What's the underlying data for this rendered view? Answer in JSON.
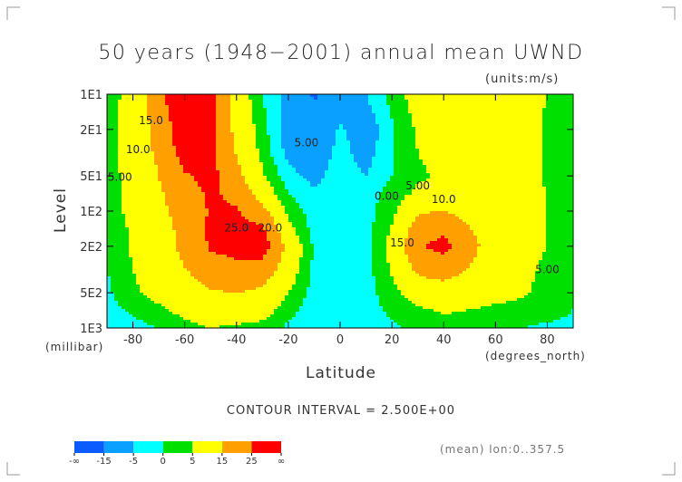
{
  "chart_data": {
    "type": "heatmap",
    "title": "50 years (1948−2001) annual mean UWND",
    "units_label": "(units:m/s)",
    "xlabel": "Latitude",
    "xunit_label": "(degrees_north)",
    "ylabel": "Level",
    "yunit_label": "(millibar)",
    "xlim": [
      -90,
      90
    ],
    "ylim": [
      1000,
      10
    ],
    "yscale": "log",
    "x_ticks": [
      -80,
      -60,
      -40,
      -20,
      0,
      20,
      40,
      60,
      80
    ],
    "x_tick_labels": [
      "-80",
      "-60",
      "-40",
      "-20",
      "0",
      "20",
      "40",
      "60",
      "80"
    ],
    "y_ticks": [
      10,
      20,
      50,
      100,
      200,
      500,
      1000
    ],
    "y_tick_labels": [
      "1E1",
      "2E1",
      "5E1",
      "1E2",
      "2E2",
      "5E2",
      "1E3"
    ],
    "contour_interval_label": "CONTOUR INTERVAL = 2.500E+00",
    "footer_label": "(mean) lon:0..357.5",
    "lat": [
      -90,
      -80,
      -70,
      -60,
      -50,
      -40,
      -30,
      -20,
      -10,
      0,
      10,
      20,
      30,
      40,
      50,
      60,
      70,
      80,
      90
    ],
    "levels": [
      10,
      20,
      30,
      50,
      70,
      100,
      150,
      200,
      300,
      500,
      700,
      1000
    ],
    "values": [
      [
        2,
        8,
        22,
        35,
        28,
        10,
        0,
        -7,
        -16,
        -10,
        -5,
        2,
        8,
        10,
        11,
        12,
        8,
        5,
        2
      ],
      [
        2,
        9,
        18,
        32,
        28,
        12,
        2,
        -8,
        -12,
        -4,
        -9,
        -1,
        6,
        9,
        10,
        10,
        8,
        4,
        1
      ],
      [
        2,
        9,
        17,
        30,
        28,
        14,
        3,
        -7,
        -10,
        -3,
        -8,
        0,
        5,
        8,
        9,
        9,
        8,
        4,
        1
      ],
      [
        2,
        8,
        15,
        24,
        28,
        18,
        6,
        -3,
        -7,
        -2,
        -5,
        0,
        4,
        6,
        8,
        8,
        8,
        4,
        1
      ],
      [
        2,
        7,
        14,
        20,
        27,
        22,
        10,
        0,
        -4,
        -2,
        -2,
        2,
        6,
        8,
        9,
        8,
        8,
        5,
        1
      ],
      [
        2,
        7,
        13,
        18,
        26,
        26,
        18,
        3,
        -2,
        -3,
        -2,
        3,
        14,
        15,
        12,
        9,
        8,
        5,
        1
      ],
      [
        1,
        6,
        12,
        17,
        27,
        28,
        28,
        8,
        -2,
        -3,
        -2,
        6,
        20,
        24,
        16,
        10,
        7,
        5,
        1
      ],
      [
        1,
        6,
        11,
        17,
        26,
        27,
        30,
        12,
        -1,
        -3,
        -2,
        7,
        24,
        28,
        18,
        10,
        7,
        5,
        1
      ],
      [
        0,
        5,
        10,
        15,
        22,
        24,
        22,
        10,
        -1,
        -3,
        -2,
        6,
        18,
        20,
        15,
        9,
        7,
        4,
        1
      ],
      [
        -1,
        4,
        7,
        10,
        14,
        15,
        13,
        5,
        -2,
        -4,
        -2,
        3,
        9,
        11,
        9,
        7,
        6,
        3,
        1
      ],
      [
        -2,
        1,
        4,
        7,
        9,
        9,
        8,
        2,
        -3,
        -3,
        -2,
        1,
        4,
        6,
        5,
        4,
        3,
        2,
        0
      ],
      [
        -3,
        -2,
        0,
        3,
        5,
        4,
        3,
        -1,
        -4,
        -3,
        -2,
        -1,
        1,
        2,
        2,
        1,
        0,
        -1,
        -1
      ]
    ],
    "color_levels": [
      -15,
      -5,
      0,
      5,
      15,
      25
    ],
    "colors": [
      "#0a5cff",
      "#0aa0ff",
      "#00ffff",
      "#00e000",
      "#ffff00",
      "#ffa000",
      "#ff0000"
    ],
    "colorbar_labels": [
      "-∞",
      "-15",
      "-5",
      "0",
      "5",
      "15",
      "25",
      "∞"
    ],
    "annotations": [
      {
        "text": "15.0",
        "lat": -73,
        "level": 18
      },
      {
        "text": "10.0",
        "lat": -78,
        "level": 32
      },
      {
        "text": "5.00",
        "lat": -85,
        "level": 55
      },
      {
        "text": "5.00",
        "lat": -13,
        "level": 28
      },
      {
        "text": "25.0",
        "lat": -40,
        "level": 150
      },
      {
        "text": "20.0",
        "lat": -27,
        "level": 150
      },
      {
        "text": "0.00",
        "lat": 18,
        "level": 80
      },
      {
        "text": "5.00",
        "lat": 30,
        "level": 65
      },
      {
        "text": "10.0",
        "lat": 40,
        "level": 85
      },
      {
        "text": "15.0",
        "lat": 24,
        "level": 200
      },
      {
        "text": "5.00",
        "lat": 80,
        "level": 340
      }
    ]
  }
}
